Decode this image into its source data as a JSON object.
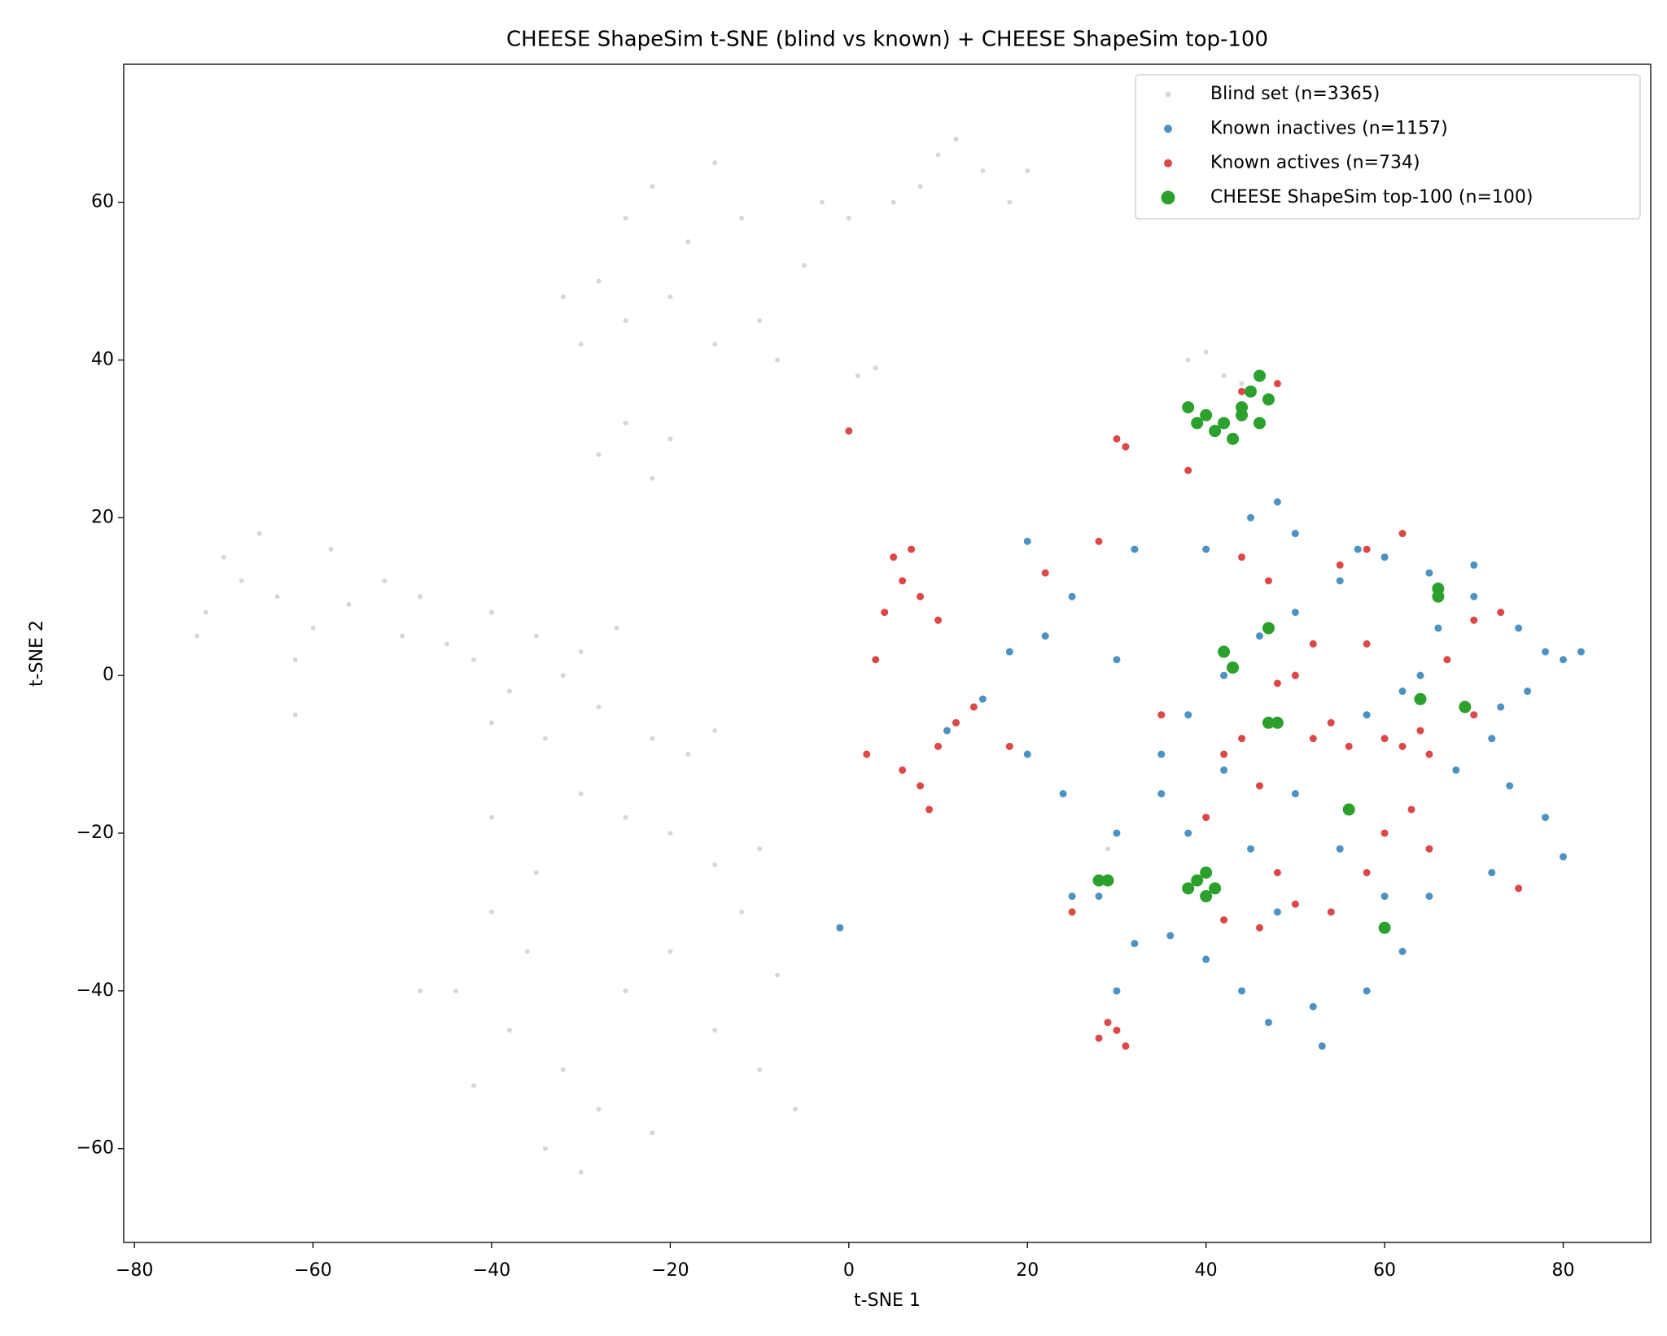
{
  "chart_data": {
    "type": "scatter",
    "title": "CHEESE ShapeSim t-SNE (blind vs known) + CHEESE ShapeSim top-100",
    "xlabel": "t-SNE 1",
    "ylabel": "t-SNE 2",
    "xlim": [
      -81.2,
      89.8
    ],
    "ylim": [
      -71.9,
      77.5
    ],
    "xticks": [
      {
        "value": -80,
        "label": "−80"
      },
      {
        "value": -60,
        "label": "−60"
      },
      {
        "value": -40,
        "label": "−40"
      },
      {
        "value": -20,
        "label": "−20"
      },
      0,
      20,
      40,
      60,
      80
    ],
    "yticks": [
      {
        "value": -60,
        "label": "−60"
      },
      {
        "value": -40,
        "label": "−40"
      },
      {
        "value": -20,
        "label": "−20"
      },
      0,
      20,
      40,
      60
    ],
    "legend": "upper right",
    "series": [
      {
        "name": "Blind set (n=3365)",
        "color": "#b9bcc2",
        "x": [
          -70,
          -68,
          -72,
          -66,
          -64,
          -60,
          -58,
          -56,
          -62,
          -73,
          -52,
          -48,
          -50,
          -45,
          -42,
          -40,
          -38,
          -35,
          -32,
          -30,
          -28,
          -26,
          -34,
          -40,
          -22,
          -18,
          -15,
          -30,
          -25,
          -20,
          -15,
          -10,
          -35,
          -40,
          -44,
          -38,
          -32,
          -28,
          -34,
          -30,
          -25,
          -20,
          -15,
          -10,
          -8,
          -6,
          -22,
          -42,
          -28,
          -25,
          -22,
          -20,
          -30,
          -28,
          -25,
          -22,
          -20,
          -18,
          -15,
          -12,
          -10,
          -8,
          -5,
          -15,
          -25,
          -32,
          -3,
          0,
          5,
          8,
          10,
          12,
          15,
          18,
          20,
          3,
          1,
          28,
          29,
          40,
          42,
          44,
          38,
          -40,
          -12,
          -36,
          -48,
          -62
        ],
        "values": [
          15,
          12,
          8,
          18,
          10,
          6,
          16,
          9,
          2,
          5,
          12,
          10,
          5,
          4,
          2,
          8,
          -2,
          5,
          0,
          3,
          -4,
          6,
          -8,
          -6,
          -8,
          -10,
          -7,
          -15,
          -18,
          -20,
          -24,
          -22,
          -25,
          -30,
          -40,
          -45,
          -50,
          -55,
          -60,
          -63,
          -40,
          -35,
          -45,
          -50,
          -38,
          -55,
          -58,
          -52,
          28,
          32,
          25,
          30,
          42,
          50,
          58,
          62,
          48,
          55,
          42,
          58,
          45,
          40,
          52,
          65,
          45,
          48,
          60,
          58,
          60,
          62,
          66,
          68,
          64,
          60,
          64,
          39,
          38,
          -26,
          -22,
          41,
          38,
          37,
          40,
          -18,
          -30,
          -35,
          -40,
          -5
        ]
      },
      {
        "name": "Known inactives (n=1157)",
        "color": "#1f77b4",
        "x": [
          45,
          48,
          40,
          32,
          25,
          22,
          18,
          15,
          20,
          24,
          30,
          35,
          38,
          42,
          46,
          50,
          55,
          60,
          65,
          70,
          75,
          78,
          80,
          82,
          76,
          72,
          68,
          74,
          78,
          80,
          72,
          65,
          62,
          58,
          52,
          47,
          44,
          40,
          36,
          32,
          28,
          25,
          30,
          38,
          42,
          50,
          55,
          58,
          62,
          66,
          70,
          73,
          60,
          48,
          45,
          35,
          53,
          50,
          57,
          64,
          -1,
          11,
          30,
          20
        ],
        "values": [
          20,
          22,
          16,
          16,
          10,
          5,
          3,
          -3,
          -10,
          -15,
          -20,
          -10,
          -5,
          0,
          5,
          8,
          12,
          15,
          13,
          14,
          6,
          3,
          2,
          3,
          -2,
          -8,
          -12,
          -14,
          -18,
          -23,
          -25,
          -28,
          -35,
          -40,
          -42,
          -44,
          -40,
          -36,
          -33,
          -34,
          -28,
          -28,
          -40,
          -20,
          -12,
          -15,
          -22,
          -5,
          -2,
          6,
          10,
          -4,
          -28,
          -30,
          -22,
          -15,
          -47,
          18,
          16,
          0,
          -32,
          -7,
          2,
          17
        ]
      },
      {
        "name": "Known actives (n=734)",
        "color": "#d62728",
        "x": [
          5,
          6,
          4,
          8,
          10,
          7,
          3,
          2,
          6,
          8,
          10,
          12,
          9,
          14,
          18,
          0,
          30,
          31,
          38,
          44,
          47,
          52,
          50,
          48,
          44,
          42,
          46,
          52,
          54,
          56,
          60,
          62,
          64,
          60,
          58,
          63,
          65,
          40,
          42,
          46,
          50,
          54,
          30,
          29,
          31,
          28,
          55,
          58,
          62,
          70,
          73,
          67,
          70,
          75,
          25,
          35,
          22,
          28,
          58,
          65,
          48,
          44,
          38,
          48
        ],
        "values": [
          15,
          12,
          8,
          10,
          7,
          16,
          2,
          -10,
          -12,
          -14,
          -9,
          -6,
          -17,
          -4,
          -9,
          31,
          30,
          29,
          26,
          15,
          12,
          4,
          0,
          -1,
          -8,
          -10,
          -14,
          -8,
          -6,
          -9,
          -8,
          -9,
          -7,
          -20,
          -25,
          -17,
          -22,
          -18,
          -31,
          -32,
          -29,
          -30,
          -45,
          -44,
          -47,
          -46,
          14,
          16,
          18,
          7,
          8,
          2,
          -5,
          -27,
          -30,
          -5,
          13,
          17,
          4,
          -10,
          37,
          36,
          34,
          -25
        ]
      },
      {
        "name": "CHEESE ShapeSim top-100 (n=100)",
        "color": "#2ca02c",
        "x": [
          38,
          40,
          42,
          44,
          45,
          46,
          47,
          43,
          41,
          39,
          44,
          46,
          47,
          42,
          43,
          66,
          66,
          64,
          69,
          47,
          48,
          56,
          28,
          29,
          38,
          39,
          40,
          40,
          41,
          60
        ],
        "values": [
          34,
          33,
          32,
          34,
          36,
          38,
          35,
          30,
          31,
          32,
          33,
          32,
          6,
          3,
          1,
          10,
          11,
          -3,
          -4,
          -6,
          -6,
          -17,
          -26,
          -26,
          -27,
          -26,
          -28,
          -25,
          -27,
          -32
        ]
      }
    ]
  }
}
